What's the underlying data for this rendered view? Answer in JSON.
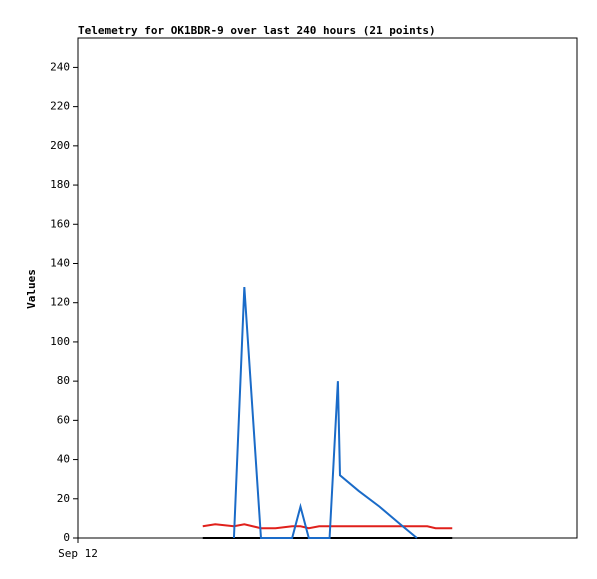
{
  "chart_data": {
    "type": "line",
    "title": "Telemetry for OK1BDR-9 over last 240 hours (21 points)",
    "y_label": "Values",
    "x": [
      60,
      66,
      75,
      80,
      88,
      95,
      103,
      107,
      111,
      116,
      121,
      125,
      126,
      135,
      145,
      155,
      163,
      168,
      172,
      176,
      180
    ],
    "xlim": [
      0,
      240
    ],
    "xticks": [
      {
        "value": 0,
        "label": "Sep 12"
      }
    ],
    "ylim": [
      0,
      255
    ],
    "yticks": [
      0,
      20,
      40,
      60,
      80,
      100,
      120,
      140,
      160,
      180,
      200,
      220,
      240
    ],
    "series": [
      {
        "color": "#000000",
        "values": [
          0,
          0,
          0,
          0,
          0,
          0,
          0,
          0,
          0,
          0,
          0,
          0,
          0,
          0,
          0,
          0,
          0,
          0,
          0,
          0,
          0
        ]
      },
      {
        "color": "#e0201b",
        "values": [
          6,
          7,
          6,
          7,
          5,
          5,
          6,
          6,
          5,
          6,
          6,
          6,
          6,
          6,
          6,
          6,
          6,
          6,
          5,
          5,
          5
        ]
      },
      {
        "color": "#1a6bc8",
        "values": [
          null,
          null,
          0,
          128,
          0,
          0,
          0,
          16,
          0,
          0,
          0,
          80,
          32,
          24,
          16,
          7,
          0,
          null,
          null,
          null,
          null
        ]
      }
    ]
  }
}
